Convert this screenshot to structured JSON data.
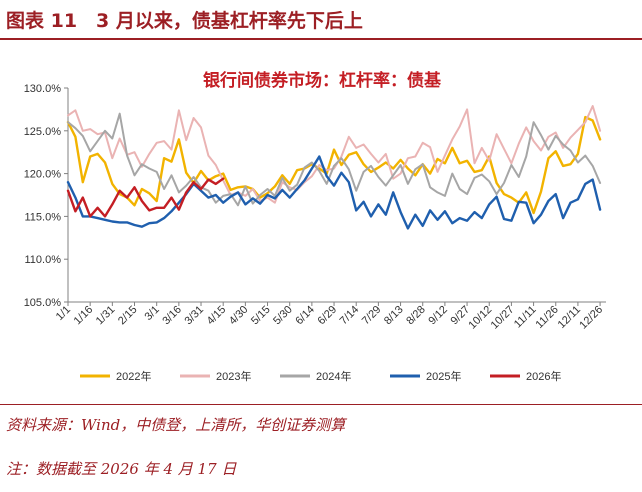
{
  "header": {
    "title": "图表 11　3 月以来，债基杠杆率先下后上"
  },
  "notes": {
    "source": "资料来源：Wind，中债登，上清所，华创证券测算",
    "date": "注：数据截至 2026 年 4 月 17 日"
  },
  "colors": {
    "accent": "#9c1f24",
    "2022年": "#f2b300",
    "2023年": "#eab3b3",
    "2024年": "#a6a6a6",
    "2025年": "#1f5fae",
    "2026年": "#c41e24"
  },
  "chart_data": {
    "type": "line",
    "title": "银行间债券市场：杠杆率：债基",
    "xlabel": "",
    "ylabel": "",
    "ylim": [
      105,
      130
    ],
    "yticks": [
      "105.0%",
      "110.0%",
      "115.0%",
      "120.0%",
      "125.0%",
      "130.0%"
    ],
    "xticks": [
      "1/1",
      "1/16",
      "1/31",
      "2/15",
      "3/1",
      "3/16",
      "3/31",
      "4/15",
      "4/30",
      "5/15",
      "5/30",
      "6/14",
      "6/29",
      "7/14",
      "7/29",
      "8/13",
      "8/28",
      "9/12",
      "9/27",
      "10/12",
      "10/27",
      "11/11",
      "11/26",
      "12/11",
      "12/26"
    ],
    "x_unit": "day-of-year",
    "legend_position": "bottom",
    "series": [
      {
        "name": "2022年",
        "x": [
          1,
          6,
          11,
          16,
          21,
          26,
          31,
          36,
          41,
          46,
          51,
          56,
          61,
          66,
          71,
          76,
          81,
          86,
          91,
          96,
          101,
          106,
          111,
          116,
          121,
          126,
          131,
          136,
          141,
          146,
          151,
          156,
          161,
          166,
          171,
          176,
          181,
          186,
          191,
          196,
          201,
          206,
          211,
          216,
          221,
          226,
          231,
          236,
          241,
          246,
          251,
          256,
          261,
          266,
          271,
          276,
          281,
          286,
          291,
          296,
          301,
          306,
          311,
          316,
          321,
          326,
          331,
          336,
          341,
          346,
          351,
          356,
          361
        ],
        "values": [
          126.0,
          124.3,
          119.0,
          122.0,
          122.3,
          121.3,
          118.8,
          117.6,
          117.2,
          116.3,
          118.2,
          117.7,
          116.8,
          121.8,
          121.4,
          124.0,
          120.1,
          118.9,
          120.3,
          119.2,
          119.7,
          120.0,
          118.1,
          118.4,
          118.5,
          118.2,
          117.2,
          117.7,
          118.5,
          119.8,
          118.8,
          120.4,
          120.6,
          121.1,
          120.6,
          120.0,
          122.8,
          121.0,
          122.2,
          122.5,
          121.1,
          120.2,
          120.7,
          121.3,
          120.6,
          121.6,
          120.6,
          119.8,
          121.1,
          120.0,
          121.7,
          121.2,
          123.0,
          121.2,
          121.5,
          120.2,
          120.4,
          122.0,
          118.9,
          117.6,
          117.2,
          116.6,
          117.8,
          115.4,
          117.9,
          121.8,
          122.6,
          120.9,
          121.1,
          122.3,
          126.6,
          126.2,
          124.0
        ]
      },
      {
        "name": "2023年",
        "x": [
          1,
          6,
          11,
          16,
          21,
          26,
          31,
          36,
          41,
          46,
          51,
          56,
          61,
          66,
          71,
          76,
          81,
          86,
          91,
          96,
          101,
          106,
          111,
          116,
          121,
          126,
          131,
          136,
          141,
          146,
          151,
          156,
          161,
          166,
          171,
          176,
          181,
          186,
          191,
          196,
          201,
          206,
          211,
          216,
          221,
          226,
          231,
          236,
          241,
          246,
          251,
          256,
          261,
          266,
          271,
          276,
          281,
          286,
          291,
          296,
          301,
          306,
          311,
          316,
          321,
          326,
          331,
          336,
          341,
          346,
          351,
          356,
          361
        ],
        "values": [
          126.8,
          127.4,
          125.0,
          125.2,
          124.6,
          124.8,
          121.8,
          124.1,
          122.2,
          122.5,
          120.8,
          122.3,
          123.6,
          123.8,
          122.8,
          127.4,
          123.9,
          126.5,
          125.4,
          122.1,
          121.0,
          119.2,
          117.5,
          117.8,
          117.4,
          118.2,
          116.8,
          117.2,
          116.6,
          119.0,
          118.4,
          118.1,
          119.0,
          119.7,
          121.0,
          120.4,
          120.6,
          122.0,
          124.3,
          123.0,
          123.4,
          122.3,
          121.3,
          122.3,
          119.4,
          120.0,
          121.8,
          122.0,
          123.6,
          123.1,
          120.2,
          122.1,
          124.0,
          125.5,
          127.5,
          121.2,
          123.0,
          121.5,
          124.6,
          122.9,
          121.2,
          123.5,
          125.4,
          123.8,
          122.7,
          124.3,
          124.8,
          123.0,
          124.2,
          125.1,
          126.0,
          127.9,
          125.0
        ]
      },
      {
        "name": "2024年",
        "x": [
          1,
          6,
          11,
          16,
          21,
          26,
          31,
          36,
          41,
          46,
          51,
          56,
          61,
          66,
          71,
          76,
          81,
          86,
          91,
          96,
          101,
          106,
          111,
          116,
          121,
          126,
          131,
          136,
          141,
          146,
          151,
          156,
          161,
          166,
          171,
          176,
          181,
          186,
          191,
          196,
          201,
          206,
          211,
          216,
          221,
          226,
          231,
          236,
          241,
          246,
          251,
          256,
          261,
          266,
          271,
          276,
          281,
          286,
          291,
          296,
          301,
          306,
          311,
          316,
          321,
          326,
          331,
          336,
          341,
          346,
          351,
          356,
          361
        ],
        "values": [
          126.0,
          125.3,
          124.4,
          122.6,
          123.8,
          125.0,
          124.1,
          127.0,
          122.1,
          119.8,
          121.1,
          120.6,
          120.2,
          118.2,
          119.8,
          117.8,
          118.6,
          119.6,
          118.4,
          118.0,
          116.6,
          117.4,
          117.6,
          116.3,
          118.5,
          116.5,
          117.5,
          118.2,
          117.4,
          119.5,
          118.0,
          118.7,
          120.7,
          121.3,
          120.3,
          118.8,
          120.9,
          121.8,
          120.5,
          118.0,
          120.2,
          120.9,
          119.6,
          118.6,
          119.8,
          121.0,
          118.8,
          120.5,
          121.1,
          118.4,
          117.8,
          117.4,
          120.0,
          118.2,
          117.6,
          119.5,
          119.9,
          119.1,
          117.6,
          118.9,
          121.0,
          119.6,
          122.0,
          126.0,
          124.5,
          122.8,
          124.4,
          123.4,
          122.7,
          121.3,
          122.1,
          120.9,
          118.9
        ]
      },
      {
        "name": "2025年",
        "x": [
          1,
          6,
          11,
          16,
          21,
          26,
          31,
          36,
          41,
          46,
          51,
          56,
          61,
          66,
          71,
          76,
          81,
          86,
          91,
          96,
          101,
          106,
          111,
          116,
          121,
          126,
          131,
          136,
          141,
          146,
          151,
          156,
          161,
          166,
          171,
          176,
          181,
          186,
          191,
          196,
          201,
          206,
          211,
          216,
          221,
          226,
          231,
          236,
          241,
          246,
          251,
          256,
          261,
          266,
          271,
          276,
          281,
          286,
          291,
          296,
          301,
          306,
          311,
          316,
          321,
          326,
          331,
          336,
          341,
          346,
          351,
          356,
          361
        ],
        "values": [
          119.0,
          117.2,
          115.0,
          115.0,
          114.8,
          114.6,
          114.4,
          114.3,
          114.3,
          114.0,
          113.8,
          114.2,
          114.3,
          114.8,
          115.6,
          116.6,
          117.6,
          118.8,
          118.0,
          117.2,
          117.5,
          116.6,
          117.3,
          117.8,
          116.4,
          117.1,
          116.5,
          117.5,
          117.1,
          118.1,
          117.2,
          118.2,
          119.2,
          120.6,
          122.0,
          119.7,
          118.6,
          120.1,
          119.0,
          115.7,
          116.7,
          115.0,
          116.4,
          115.2,
          117.8,
          115.5,
          113.6,
          115.2,
          113.9,
          115.7,
          114.6,
          115.6,
          114.2,
          114.8,
          114.5,
          115.5,
          114.8,
          116.4,
          117.3,
          114.7,
          114.5,
          116.7,
          116.6,
          114.2,
          115.2,
          116.8,
          117.6,
          114.8,
          116.6,
          117.0,
          118.8,
          119.3,
          115.8
        ]
      },
      {
        "name": "2026年",
        "x": [
          1,
          6,
          11,
          16,
          21,
          26,
          31,
          36,
          41,
          46,
          51,
          56,
          61,
          66,
          71,
          76,
          81,
          86,
          91,
          96,
          101,
          106
        ],
        "values": [
          118.0,
          115.6,
          117.2,
          115.0,
          116.0,
          115.0,
          116.4,
          118.0,
          117.2,
          118.4,
          116.8,
          115.7,
          116.0,
          116.0,
          117.2,
          115.8,
          117.8,
          119.0,
          118.2,
          119.3,
          118.8,
          119.4
        ]
      }
    ]
  }
}
